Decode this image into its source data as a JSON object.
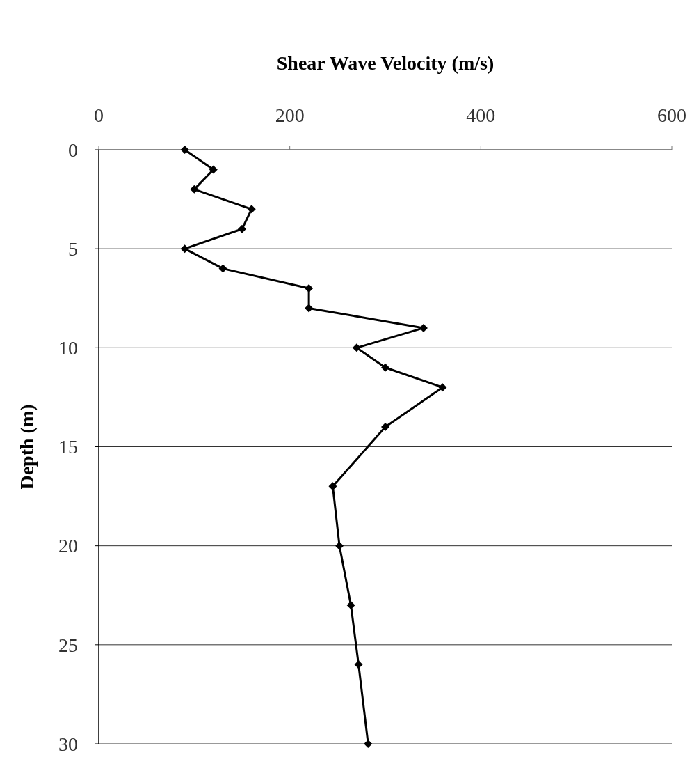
{
  "chart_data": {
    "type": "line",
    "xlabel": "Shear Wave Velocity (m/s)",
    "ylabel": "Depth (m)",
    "xlim": [
      0,
      600
    ],
    "xticks": [
      0,
      200,
      400,
      600
    ],
    "ylim": [
      30,
      0
    ],
    "yticks": [
      0,
      5,
      10,
      15,
      20,
      25,
      30
    ],
    "grid": "y",
    "marker": "diamond",
    "line_style": "solid",
    "series": [
      {
        "color": "#000000",
        "x": [
          90,
          120,
          100,
          160,
          150,
          90,
          130,
          220,
          220,
          340,
          270,
          300,
          360,
          300,
          245,
          252,
          264,
          272,
          282
        ],
        "values": [
          0,
          1,
          2,
          3,
          4,
          5,
          6,
          7,
          8,
          9,
          10,
          11,
          12,
          14,
          17,
          20,
          23,
          26,
          30
        ]
      }
    ]
  }
}
